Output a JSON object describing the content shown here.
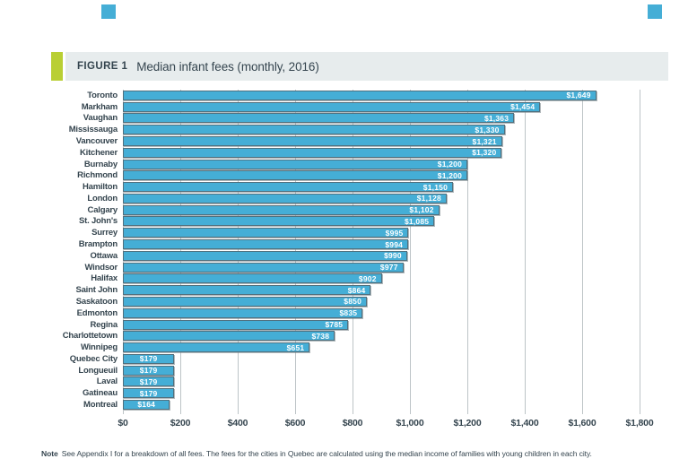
{
  "page": {
    "figure_label": "FIGURE 1",
    "figure_title": "Median infant fees (monthly, 2016)",
    "note_label": "Note",
    "note_text": "See Appendix I for a breakdown of all fees. The fees for the cities in Quebec are calculated using the median income of families with young children in each city."
  },
  "colors": {
    "bar_fill": "#45AED6",
    "bar_border": "#50707E",
    "accent_green": "#B9CF33",
    "header_bg": "#E7ECED",
    "text_dark": "#35454F",
    "gridline": "#BDC4C7",
    "value_text": "#FFFFFF",
    "corner_square": "#45AED6"
  },
  "chart_data": {
    "type": "bar",
    "orientation": "horizontal",
    "title": "Median infant fees (monthly, 2016)",
    "categories": [
      "Toronto",
      "Markham",
      "Vaughan",
      "Mississauga",
      "Vancouver",
      "Kitchener",
      "Burnaby",
      "Richmond",
      "Hamilton",
      "London",
      "Calgary",
      "St. John's",
      "Surrey",
      "Brampton",
      "Ottawa",
      "Windsor",
      "Halifax",
      "Saint John",
      "Saskatoon",
      "Edmonton",
      "Regina",
      "Charlottetown",
      "Winnipeg",
      "Quebec City",
      "Longueuil",
      "Laval",
      "Gatineau",
      "Montreal"
    ],
    "values": [
      1649,
      1454,
      1363,
      1330,
      1321,
      1320,
      1200,
      1200,
      1150,
      1128,
      1102,
      1085,
      995,
      994,
      990,
      977,
      902,
      864,
      850,
      835,
      785,
      738,
      651,
      179,
      179,
      179,
      179,
      164
    ],
    "value_labels": [
      "$1,649",
      "$1,454",
      "$1,363",
      "$1,330",
      "$1,321",
      "$1,320",
      "$1,200",
      "$1,200",
      "$1,150",
      "$1,128",
      "$1,102",
      "$1,085",
      "$995",
      "$994",
      "$990",
      "$977",
      "$902",
      "$864",
      "$850",
      "$835",
      "$785",
      "$738",
      "$651",
      "$179",
      "$179",
      "$179",
      "$179",
      "$164"
    ],
    "xlabel": "",
    "ylabel": "",
    "xlim": [
      0,
      1800
    ],
    "xticks": [
      0,
      200,
      400,
      600,
      800,
      1000,
      1200,
      1400,
      1600,
      1800
    ],
    "xtick_labels": [
      "$0",
      "$200",
      "$400",
      "$600",
      "$800",
      "$1,000",
      "$1,200",
      "$1,400",
      "$1,600",
      "$1,800"
    ],
    "grid": "vertical",
    "legend": "none"
  }
}
